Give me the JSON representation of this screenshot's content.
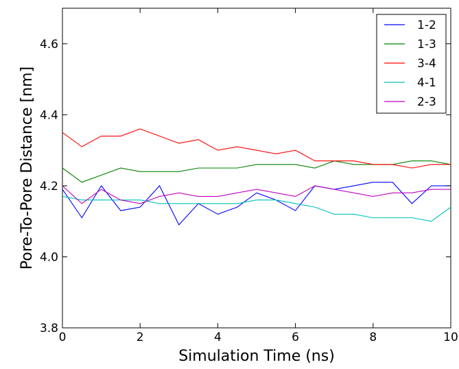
{
  "chart_data": {
    "type": "line",
    "title": "",
    "xlabel": "Simulation Time (ns)",
    "ylabel": "Pore-To-Pore Distance [nm]",
    "xlim": [
      0,
      10
    ],
    "ylim": [
      3.8,
      4.7
    ],
    "xticks": [
      "0",
      "2",
      "4",
      "6",
      "8",
      "10"
    ],
    "yticks": [
      "3.8",
      "4.0",
      "4.2",
      "4.4",
      "4.6"
    ],
    "xtick_values": [
      0,
      2,
      4,
      6,
      8,
      10
    ],
    "ytick_values": [
      3.8,
      4.0,
      4.2,
      4.4,
      4.6
    ],
    "grid": false,
    "legend_position": "top-right",
    "x": [
      0.0,
      0.5,
      1.0,
      1.5,
      2.0,
      2.5,
      3.0,
      3.5,
      4.0,
      4.5,
      5.0,
      5.5,
      6.0,
      6.5,
      7.0,
      7.5,
      8.0,
      8.5,
      9.0,
      9.5,
      10.0
    ],
    "series": [
      {
        "name": "1-2",
        "color": "#0000ff",
        "values": [
          4.19,
          4.11,
          4.2,
          4.13,
          4.14,
          4.2,
          4.09,
          4.15,
          4.12,
          4.14,
          4.18,
          4.16,
          4.13,
          4.2,
          4.19,
          4.2,
          4.21,
          4.21,
          4.15,
          4.2,
          4.2
        ]
      },
      {
        "name": "1-3",
        "color": "#008000",
        "values": [
          4.25,
          4.21,
          4.23,
          4.25,
          4.24,
          4.24,
          4.24,
          4.25,
          4.25,
          4.25,
          4.26,
          4.26,
          4.26,
          4.25,
          4.27,
          4.26,
          4.26,
          4.26,
          4.27,
          4.27,
          4.26
        ]
      },
      {
        "name": "3-4",
        "color": "#ff0000",
        "values": [
          4.35,
          4.31,
          4.34,
          4.34,
          4.36,
          4.34,
          4.32,
          4.33,
          4.3,
          4.31,
          4.3,
          4.29,
          4.3,
          4.27,
          4.27,
          4.27,
          4.26,
          4.26,
          4.25,
          4.26,
          4.26
        ]
      },
      {
        "name": "4-1",
        "color": "#00bfbf",
        "values": [
          4.17,
          4.16,
          4.16,
          4.16,
          4.16,
          4.15,
          4.15,
          4.15,
          4.15,
          4.15,
          4.16,
          4.16,
          4.15,
          4.14,
          4.12,
          4.12,
          4.11,
          4.11,
          4.11,
          4.1,
          4.14
        ]
      },
      {
        "name": "2-3",
        "color": "#bf00bf",
        "values": [
          4.2,
          4.15,
          4.19,
          4.16,
          4.15,
          4.17,
          4.18,
          4.17,
          4.17,
          4.18,
          4.19,
          4.18,
          4.17,
          4.2,
          4.19,
          4.18,
          4.17,
          4.18,
          4.18,
          4.19,
          4.19
        ]
      }
    ]
  }
}
